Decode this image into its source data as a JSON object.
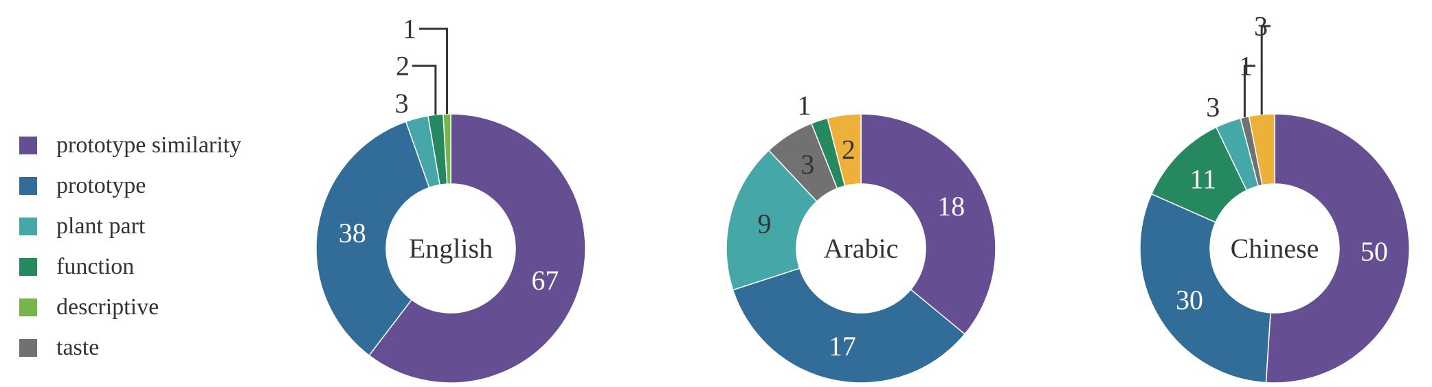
{
  "legend": [
    {
      "label": "prototype similarity",
      "color": "#654f92"
    },
    {
      "label": "prototype",
      "color": "#316d98"
    },
    {
      "label": "plant part",
      "color": "#45a7a7"
    },
    {
      "label": "function",
      "color": "#26885e"
    },
    {
      "label": "descriptive",
      "color": "#76b54b"
    },
    {
      "label": "taste",
      "color": "#717171"
    },
    {
      "label": "",
      "color": "#edb13b"
    }
  ],
  "chart_data": [
    {
      "type": "pie",
      "center_label": "English",
      "categories": [
        "prototype similarity",
        "prototype",
        "plant part",
        "function",
        "descriptive"
      ],
      "values": [
        67,
        38,
        3,
        2,
        1
      ]
    },
    {
      "type": "pie",
      "center_label": "Arabic",
      "categories": [
        "prototype similarity",
        "prototype",
        "plant part",
        "taste",
        "function",
        ""
      ],
      "values": [
        18,
        17,
        9,
        3,
        1,
        2
      ]
    },
    {
      "type": "pie",
      "center_label": "Chinese",
      "categories": [
        "prototype similarity",
        "prototype",
        "function",
        "plant part",
        "taste",
        ""
      ],
      "values": [
        50,
        30,
        11,
        3,
        1,
        3
      ]
    }
  ]
}
